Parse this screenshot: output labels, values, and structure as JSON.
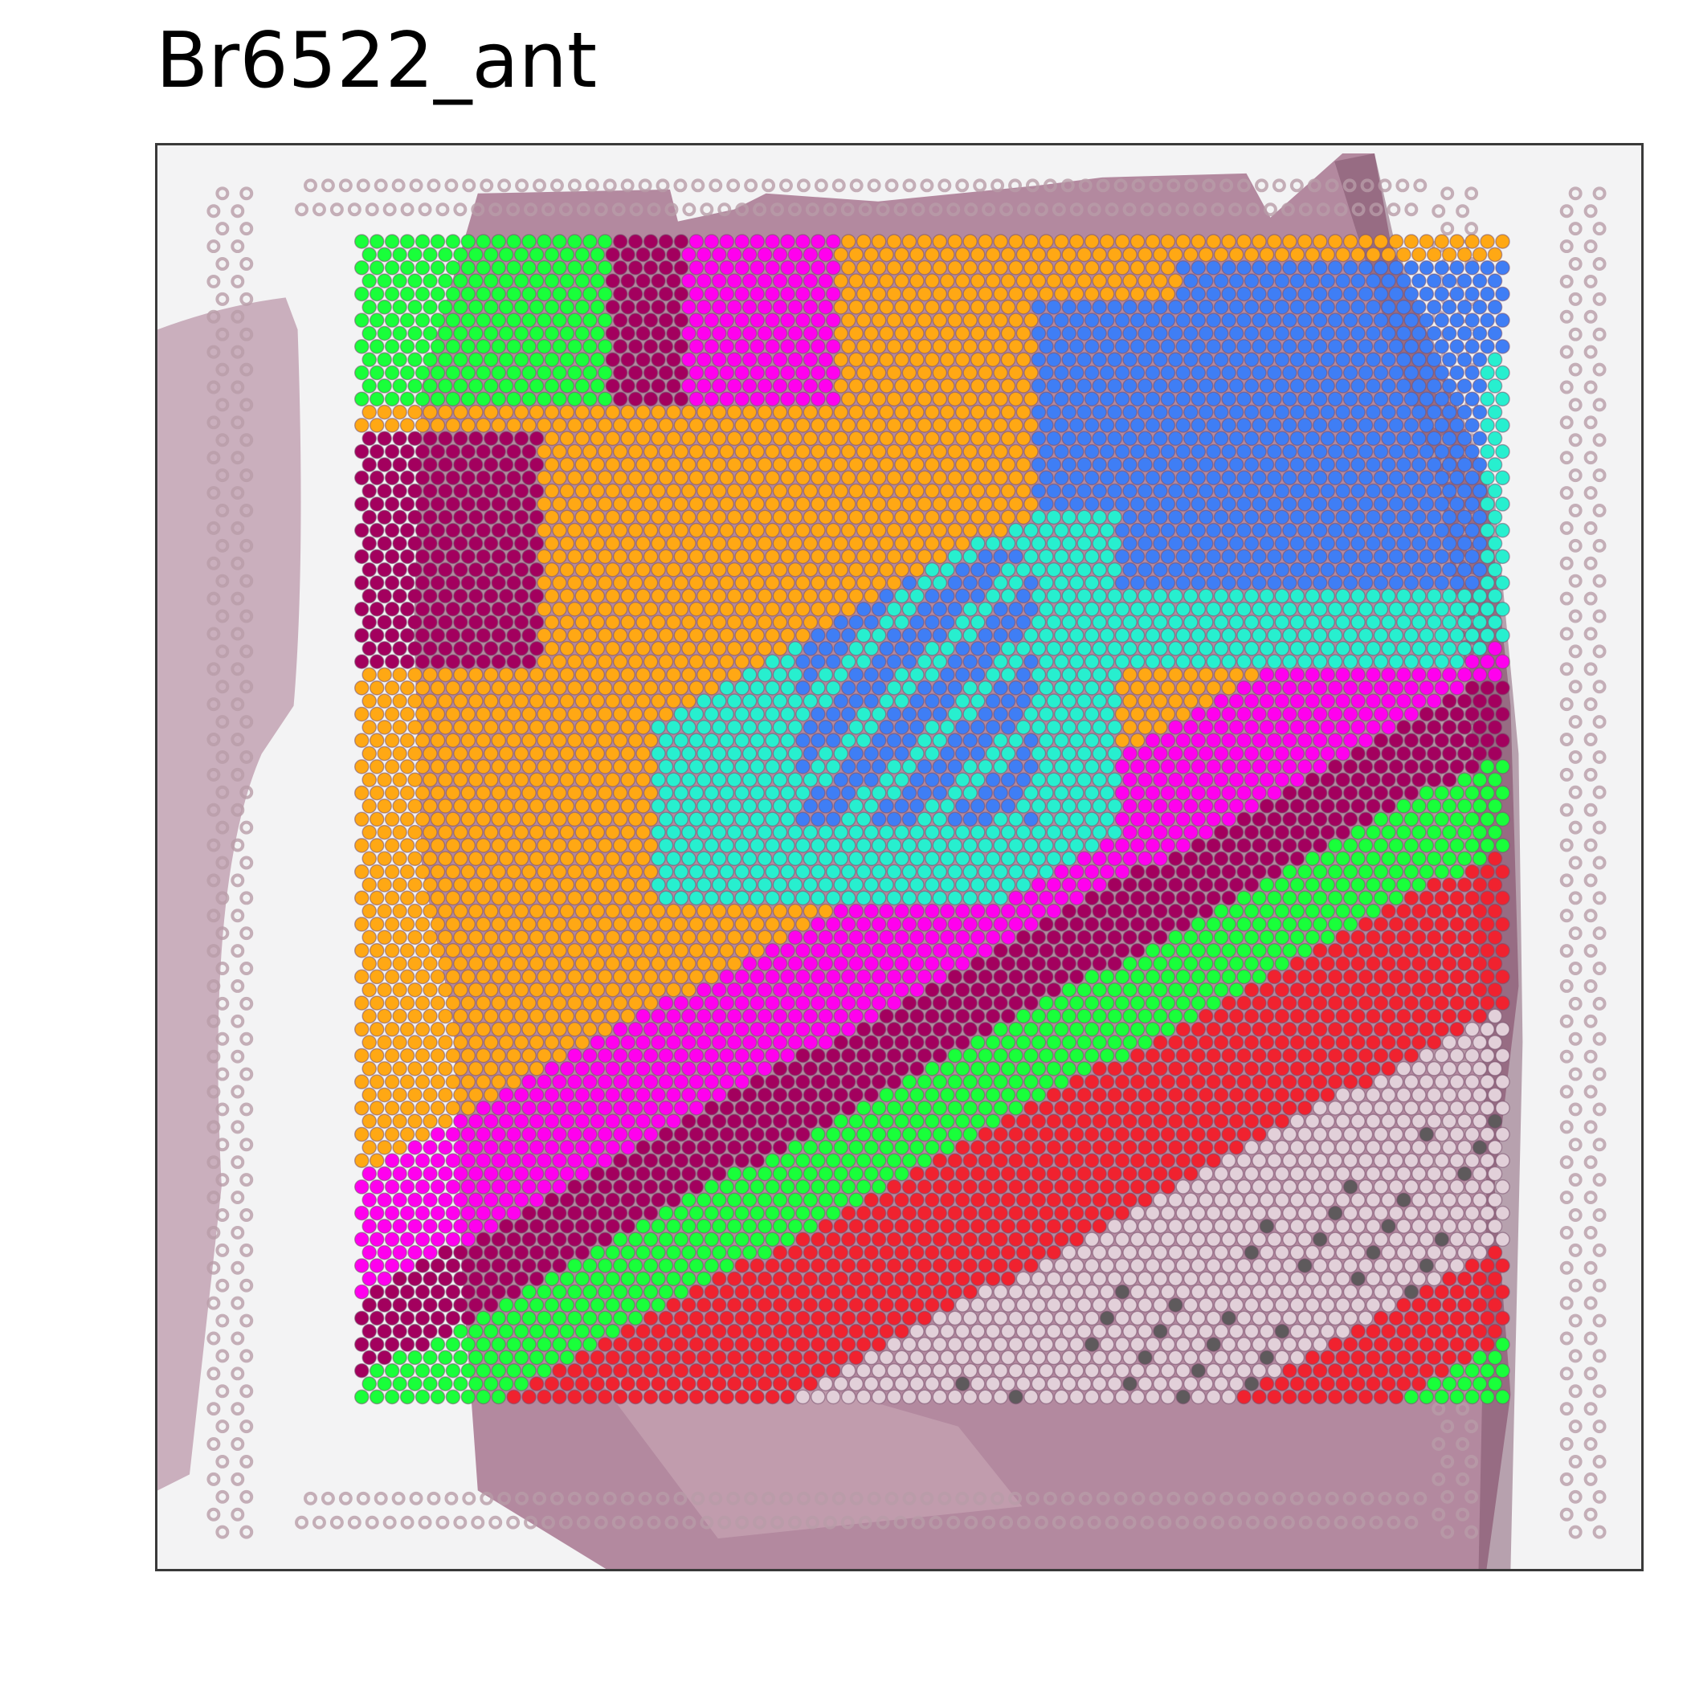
{
  "title": "Br6522_ant",
  "colors": {
    "background_slide": "#f3f3f4",
    "tissue": "#a7768f",
    "tissue_dark": "#7c4f68",
    "tissue_light": "#c9a9b8",
    "fiducial_dot": "#b89ca8"
  },
  "clusters": [
    {
      "color": "#19ff3a"
    },
    {
      "color": "#a3005e"
    },
    {
      "color": "#ff00ee"
    },
    {
      "color": "#ffa814"
    },
    {
      "color": "#27efcf"
    },
    {
      "color": "#3f7ef5"
    },
    {
      "color": "#f0222f"
    },
    {
      "color": "#e2d0d9"
    },
    {
      "color": "#5e5a5c"
    }
  ]
}
